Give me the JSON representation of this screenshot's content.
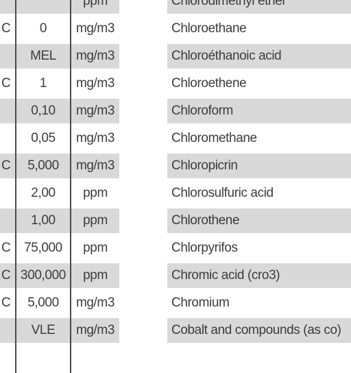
{
  "rows": [
    {
      "flag": "",
      "value": "",
      "unit": "ppm",
      "name": "Chlorodimethyl ether",
      "shaded": true
    },
    {
      "flag": "C",
      "value": "0",
      "unit": "mg/m3",
      "name": "Chloroethane",
      "shaded": false
    },
    {
      "flag": "",
      "value": "MEL",
      "unit": "mg/m3",
      "name": "Chloroéthanoic acid",
      "shaded": true
    },
    {
      "flag": "C",
      "value": "1",
      "unit": "mg/m3",
      "name": "Chloroethene",
      "shaded": false
    },
    {
      "flag": "",
      "value": "0,10",
      "unit": "mg/m3",
      "name": "Chloroform",
      "shaded": true
    },
    {
      "flag": "",
      "value": "0,05",
      "unit": "mg/m3",
      "name": "Chloromethane",
      "shaded": false
    },
    {
      "flag": "C",
      "value": "5,000",
      "unit": "mg/m3",
      "name": "Chloropicrin",
      "shaded": true
    },
    {
      "flag": "",
      "value": "2,00",
      "unit": "ppm",
      "name": "Chlorosulfuric acid",
      "shaded": false
    },
    {
      "flag": "",
      "value": "1,00",
      "unit": "ppm",
      "name": "Chlorothene",
      "shaded": true
    },
    {
      "flag": "C",
      "value": "75,000",
      "unit": "ppm",
      "name": "Chlorpyrifos",
      "shaded": false
    },
    {
      "flag": "C",
      "value": "300,000",
      "unit": "ppm",
      "name": "Chromic acid (cro3)",
      "shaded": true
    },
    {
      "flag": "C",
      "value": "5,000",
      "unit": "mg/m3",
      "name": "Chromium",
      "shaded": false
    },
    {
      "flag": "",
      "value": "VLE",
      "unit": "mg/m3",
      "name": "Cobalt and compounds (as co)",
      "shaded": true
    },
    {
      "flag": "",
      "value": "",
      "unit": "",
      "name": "",
      "shaded": false
    }
  ]
}
